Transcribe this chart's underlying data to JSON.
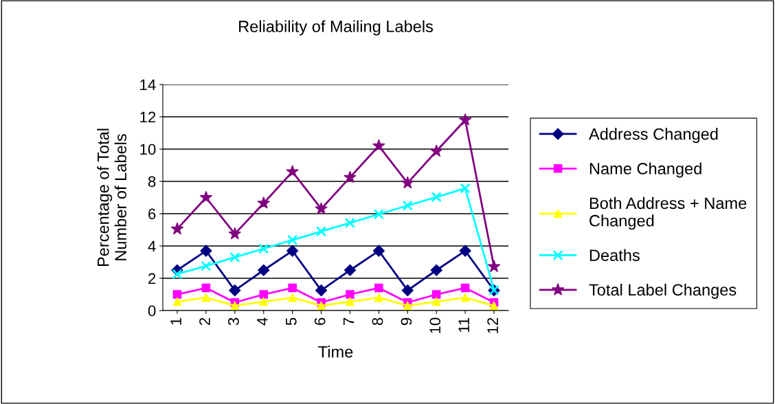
{
  "chart_data": {
    "type": "line",
    "title": "Reliability of Mailing Labels",
    "xlabel": "Time",
    "ylabel": "Percentage of Total\nNumber of Labels",
    "categories": [
      "1",
      "2",
      "3",
      "4",
      "5",
      "6",
      "7",
      "8",
      "9",
      "10",
      "11",
      "12"
    ],
    "series": [
      {
        "name": "Address Changed",
        "color": "#000080",
        "marker": "diamond",
        "values": [
          2.5,
          3.7,
          1.25,
          2.5,
          3.7,
          1.25,
          2.5,
          3.7,
          1.25,
          2.5,
          3.7,
          1.25
        ]
      },
      {
        "name": "Name Changed",
        "color": "#ff00ff",
        "marker": "square",
        "values": [
          1.0,
          1.4,
          0.5,
          1.0,
          1.4,
          0.5,
          1.0,
          1.4,
          0.5,
          1.0,
          1.4,
          0.5
        ]
      },
      {
        "name": "Both Address + Name\nChanged",
        "color": "#ffff00",
        "marker": "triangle",
        "values": [
          0.55,
          0.8,
          0.3,
          0.55,
          0.8,
          0.3,
          0.55,
          0.8,
          0.3,
          0.55,
          0.8,
          0.3
        ]
      },
      {
        "name": "Deaths",
        "color": "#00ffff",
        "marker": "cross",
        "values": [
          2.26,
          2.76,
          3.3,
          3.83,
          4.37,
          4.9,
          5.43,
          5.97,
          6.5,
          7.03,
          7.57,
          1.27
        ]
      },
      {
        "name": "Total Label Changes",
        "color": "#800080",
        "marker": "star",
        "values": [
          5.05,
          7.0,
          4.75,
          6.65,
          8.6,
          6.3,
          8.25,
          10.2,
          7.9,
          9.87,
          11.8,
          2.72
        ]
      }
    ],
    "ylim": [
      0,
      14
    ],
    "yticks": [
      0,
      2,
      4,
      6,
      8,
      10,
      12,
      14
    ],
    "grid": "y",
    "legend": "right",
    "line_style": "solid"
  }
}
